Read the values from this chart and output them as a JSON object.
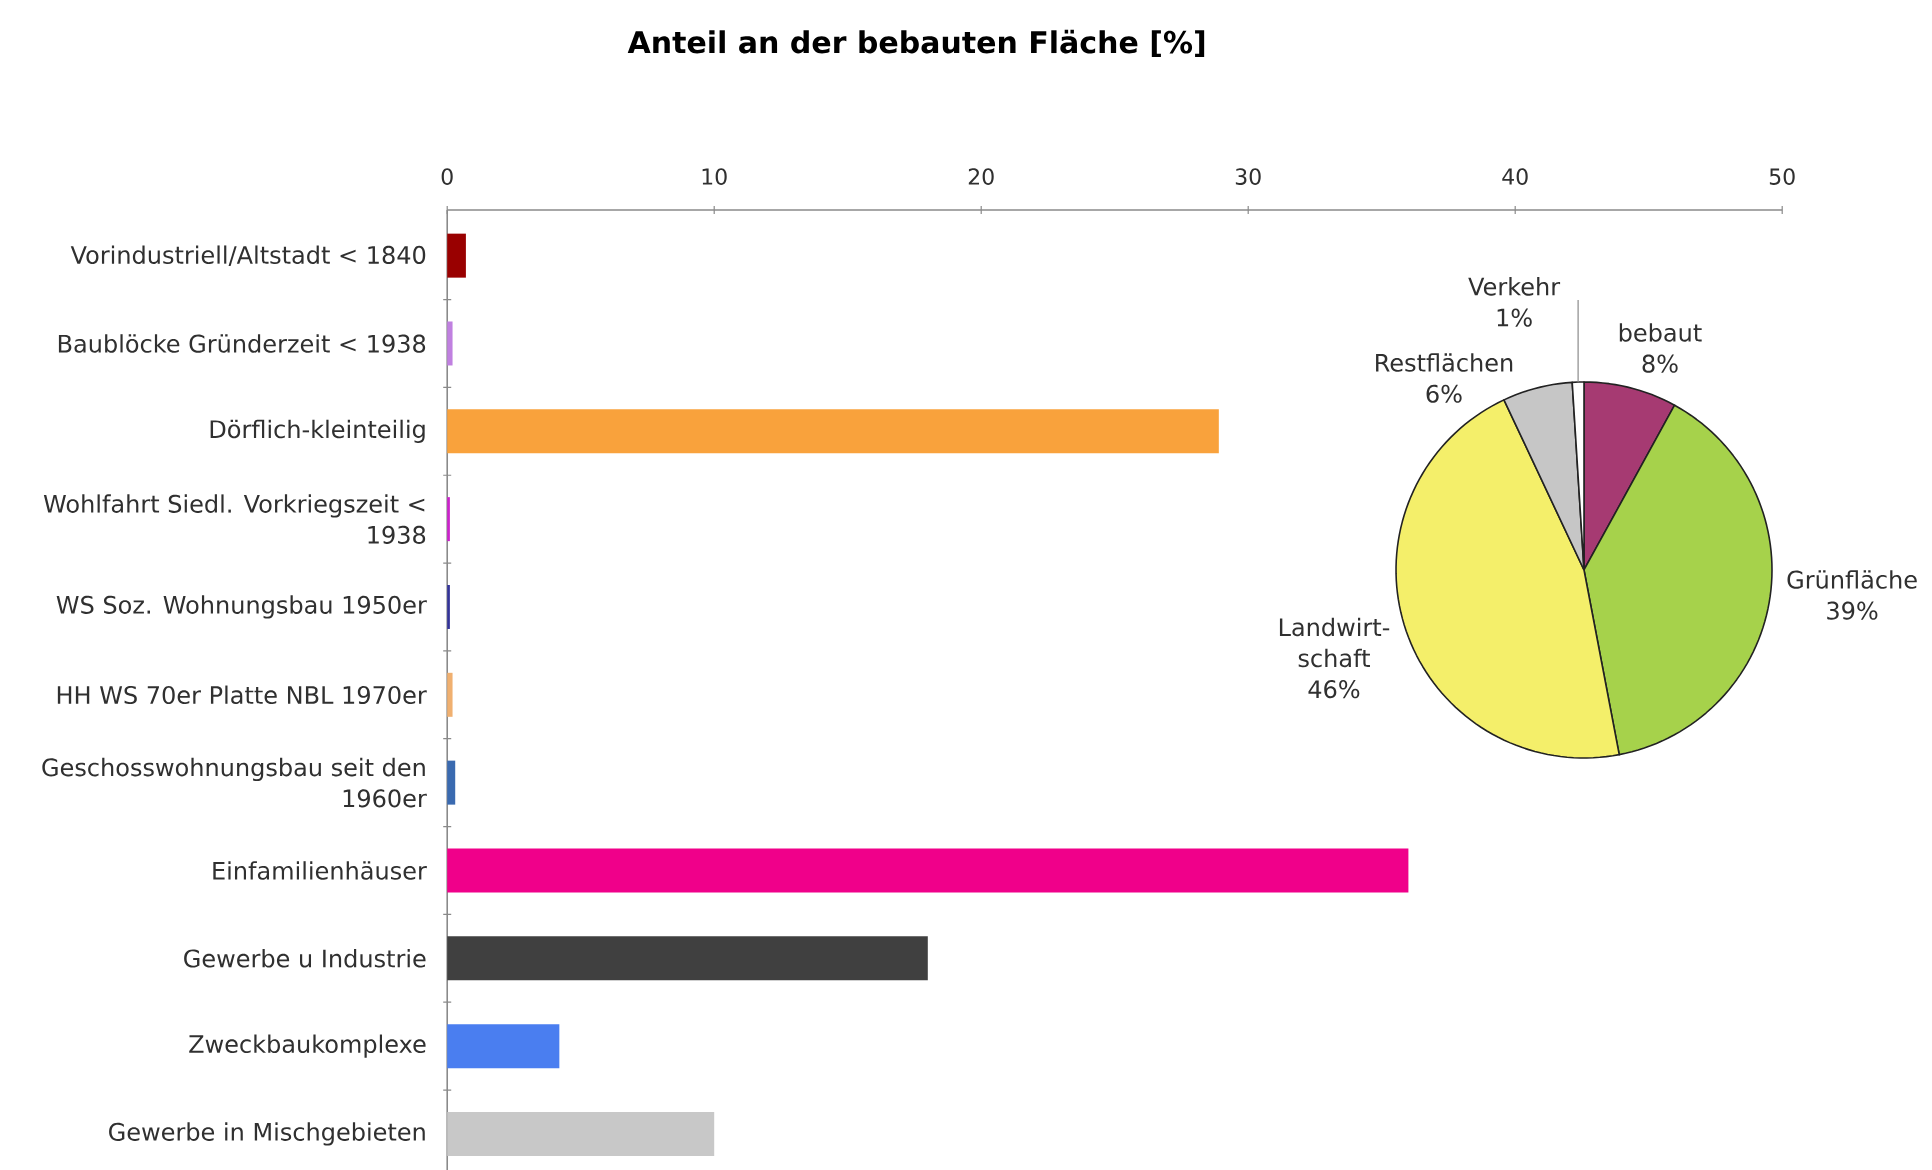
{
  "chart_data": [
    {
      "type": "bar",
      "orientation": "horizontal",
      "title": "Anteil an der bebauten Fläche [%]",
      "categories": [
        "Vorindustriell/Altstadt < 1840",
        "Baublöcke Gründerzeit < 1938",
        "Dörflich-kleinteilig",
        "Wohlfahrt Siedl. Vorkriegszeit < 1938",
        "WS Soz. Wohnungsbau 1950er",
        "HH WS 70er Platte NBL 1970er",
        "Geschosswohnungsbau seit den 1960er",
        "Einfamilienhäuser",
        "Gewerbe u Industrie",
        "Zweckbaukomplexe",
        "Gewerbe in Mischgebieten"
      ],
      "values": [
        0.7,
        0.2,
        28.9,
        0.1,
        0.1,
        0.2,
        0.3,
        36.0,
        18.0,
        4.2,
        10.0
      ],
      "colors": [
        "#990000",
        "#c080e0",
        "#f9a23c",
        "#cc22cc",
        "#333399",
        "#f0b070",
        "#3a6ab0",
        "#f0008a",
        "#404040",
        "#4a7ef0",
        "#c8c8c8"
      ],
      "xlim": [
        0,
        50
      ],
      "xticks": [
        0,
        10,
        20,
        30,
        40,
        50
      ]
    },
    {
      "type": "pie",
      "categories": [
        "bebaut",
        "Grünfläche",
        "Landwirt-schaft",
        "Restflächen",
        "Verkehr"
      ],
      "values": [
        8,
        39,
        46,
        6,
        1
      ],
      "colors": [
        "#a63a72",
        "#a6d24b",
        "#f4ef6a",
        "#c6c6c6",
        "#ffffff"
      ],
      "value_labels": [
        "8%",
        "39%",
        "46%",
        "6%",
        "1%"
      ]
    }
  ]
}
